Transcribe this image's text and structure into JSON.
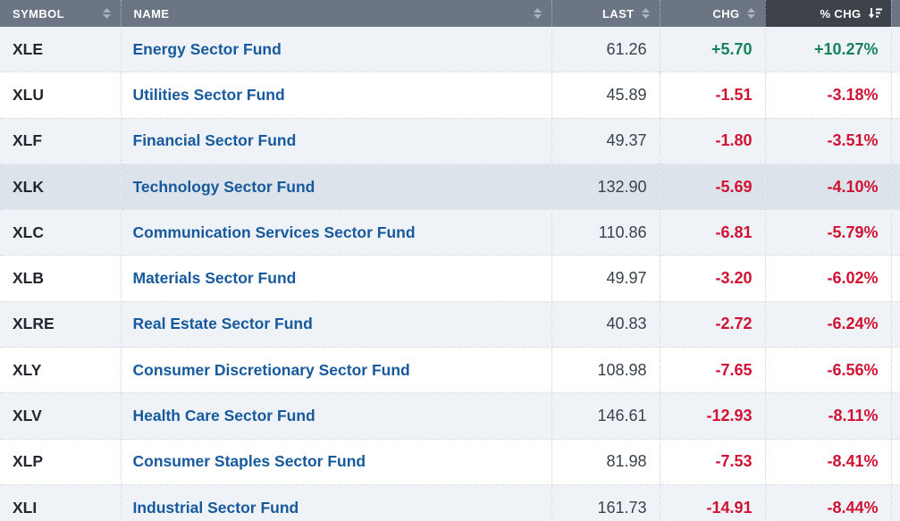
{
  "table": {
    "columns": [
      {
        "key": "symbol",
        "label": "SYMBOL",
        "sort_icon": "sort-both",
        "active": false
      },
      {
        "key": "name",
        "label": "NAME",
        "sort_icon": "sort-both",
        "active": false
      },
      {
        "key": "last",
        "label": "LAST",
        "sort_icon": "sort-both",
        "active": false
      },
      {
        "key": "chg",
        "label": "CHG",
        "sort_icon": "sort-both",
        "active": false
      },
      {
        "key": "pct_chg",
        "label": "% CHG",
        "sort_icon": "sort-descending",
        "active": true
      }
    ],
    "sort": {
      "column": "pct_chg",
      "order": "descending"
    },
    "rows": [
      {
        "symbol": "XLE",
        "name": "Energy Sector Fund",
        "last": "61.26",
        "chg": "+5.70",
        "pct_chg": "+10.27%",
        "direction": "up",
        "highlighted": false
      },
      {
        "symbol": "XLU",
        "name": "Utilities Sector Fund",
        "last": "45.89",
        "chg": "-1.51",
        "pct_chg": "-3.18%",
        "direction": "down",
        "highlighted": false
      },
      {
        "symbol": "XLF",
        "name": "Financial Sector Fund",
        "last": "49.37",
        "chg": "-1.80",
        "pct_chg": "-3.51%",
        "direction": "down",
        "highlighted": false
      },
      {
        "symbol": "XLK",
        "name": "Technology Sector Fund",
        "last": "132.90",
        "chg": "-5.69",
        "pct_chg": "-4.10%",
        "direction": "down",
        "highlighted": true
      },
      {
        "symbol": "XLC",
        "name": "Communication Services Sector Fund",
        "last": "110.86",
        "chg": "-6.81",
        "pct_chg": "-5.79%",
        "direction": "down",
        "highlighted": false
      },
      {
        "symbol": "XLB",
        "name": "Materials Sector Fund",
        "last": "49.97",
        "chg": "-3.20",
        "pct_chg": "-6.02%",
        "direction": "down",
        "highlighted": false
      },
      {
        "symbol": "XLRE",
        "name": "Real Estate Sector Fund",
        "last": "40.83",
        "chg": "-2.72",
        "pct_chg": "-6.24%",
        "direction": "down",
        "highlighted": false
      },
      {
        "symbol": "XLY",
        "name": "Consumer Discretionary Sector Fund",
        "last": "108.98",
        "chg": "-7.65",
        "pct_chg": "-6.56%",
        "direction": "down",
        "highlighted": false
      },
      {
        "symbol": "XLV",
        "name": "Health Care Sector Fund",
        "last": "146.61",
        "chg": "-12.93",
        "pct_chg": "-8.11%",
        "direction": "down",
        "highlighted": false
      },
      {
        "symbol": "XLP",
        "name": "Consumer Staples Sector Fund",
        "last": "81.98",
        "chg": "-7.53",
        "pct_chg": "-8.41%",
        "direction": "down",
        "highlighted": false
      },
      {
        "symbol": "XLI",
        "name": "Industrial Sector Fund",
        "last": "161.73",
        "chg": "-14.91",
        "pct_chg": "-8.44%",
        "direction": "down",
        "highlighted": false
      }
    ]
  },
  "colors": {
    "header_bg": "#6c7583",
    "header_active_bg": "#3e434b",
    "header_text": "#ffffff",
    "row_alt_bg": "#eff3f7",
    "row_highlight_bg": "#dce3ea",
    "positive": "#17835a",
    "negative": "#d01233",
    "name_link": "#16599d",
    "number_text": "#39424b",
    "symbol_text": "#23282e",
    "grid_border": "#ccd4db",
    "sort_icon": "#a9b3bf"
  }
}
